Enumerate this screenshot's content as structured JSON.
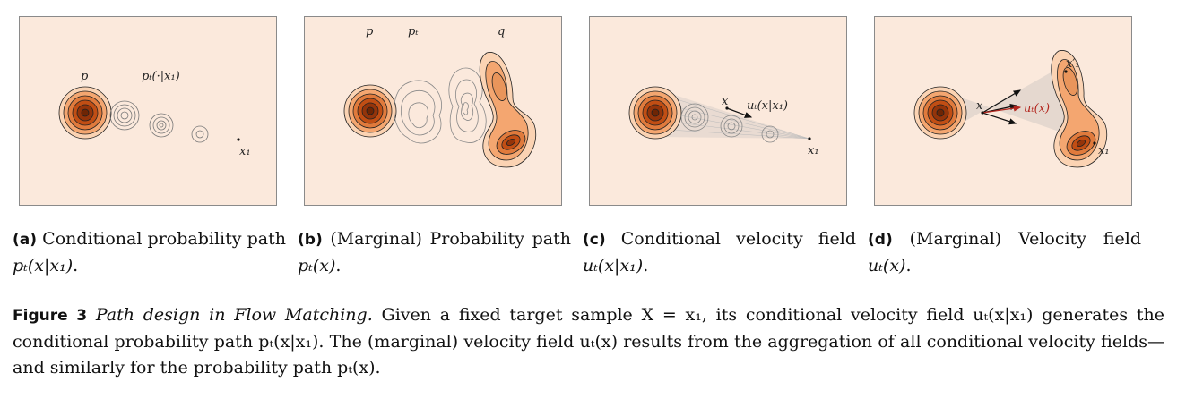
{
  "panels": {
    "a": {
      "labels": {
        "p": "p",
        "pt": "pₜ(·|x₁)",
        "x1": "x₁"
      }
    },
    "b": {
      "labels": {
        "p": "p",
        "pt": "pₜ",
        "q": "q"
      }
    },
    "c": {
      "labels": {
        "x": "x",
        "ut": "uₜ(x|x₁)",
        "x1": "x₁"
      }
    },
    "d": {
      "labels": {
        "x": "x",
        "ut": "uₜ(x)",
        "x1": "x₁",
        "x1p": "x′₁"
      }
    }
  },
  "subcaptions": {
    "a": {
      "tag": "(a)",
      "text": "Conditional probability path ",
      "math": "pₜ(x|x₁)",
      "end": "."
    },
    "b": {
      "tag": "(b)",
      "text": "(Marginal) Probability path ",
      "math": "pₜ(x)",
      "end": "."
    },
    "c": {
      "tag": "(c)",
      "text": "Conditional velocity field ",
      "math": "uₜ(x|x₁)",
      "end": "."
    },
    "d": {
      "tag": "(d)",
      "text": "(Marginal) Velocity field ",
      "math": "uₜ(x)",
      "end": "."
    }
  },
  "figure_caption": {
    "tag": "Figure 3",
    "title": "Path design in Flow Matching.",
    "text": "Given a fixed target sample X = x₁, its conditional velocity field uₜ(x|x₁) generates the conditional probability path pₜ(x|x₁). The (marginal) velocity field uₜ(x) results from the aggregation of all conditional velocity fields—and similarly for the probability path pₜ(x)."
  },
  "colors": {
    "panel_bg": "#fbe9dc",
    "dark": "#7a2a05",
    "mid": "#d9733a",
    "light": "#f6b98a",
    "arrow_red": "#b3261e"
  }
}
